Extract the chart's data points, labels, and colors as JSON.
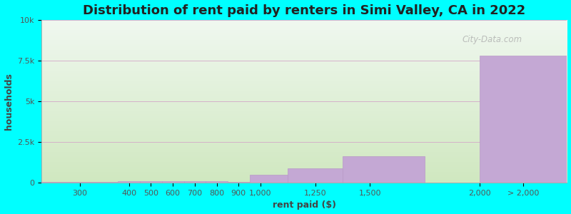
{
  "title": "Distribution of rent paid by renters in Simi Valley, CA in 2022",
  "xlabel": "rent paid ($)",
  "ylabel": "households",
  "bins_left": [
    0,
    350,
    450,
    550,
    650,
    750,
    850,
    950,
    1125,
    1375,
    1750,
    2000
  ],
  "bins_right": [
    350,
    450,
    550,
    650,
    750,
    850,
    950,
    1125,
    1375,
    1750,
    2000,
    2400
  ],
  "values": [
    55,
    75,
    90,
    95,
    90,
    75,
    55,
    480,
    870,
    1650,
    0,
    7800
  ],
  "xtick_positions": [
    175,
    400,
    500,
    600,
    700,
    800,
    900,
    1000,
    1250,
    1500,
    2000,
    2200
  ],
  "xtick_labels": [
    "300",
    "400",
    "500",
    "600",
    "700",
    "800",
    "900",
    "1,000",
    "1,250",
    "1,500",
    "2,000",
    "> 2,000"
  ],
  "bar_color": "#c4a8d4",
  "bar_edge_color": "#b898c8",
  "background_color": "#00ffff",
  "plot_bg_top_color": "#f0f8f0",
  "plot_bg_bottom_color": "#d0e8c0",
  "yticks": [
    0,
    2500,
    5000,
    7500,
    10000
  ],
  "ytick_labels": [
    "0",
    "2.5k",
    "5k",
    "7.5k",
    "10k"
  ],
  "ylim": [
    0,
    10000
  ],
  "xlim": [
    0,
    2400
  ],
  "title_fontsize": 13,
  "axis_label_fontsize": 9,
  "tick_fontsize": 8,
  "watermark_text": "City-Data.com"
}
